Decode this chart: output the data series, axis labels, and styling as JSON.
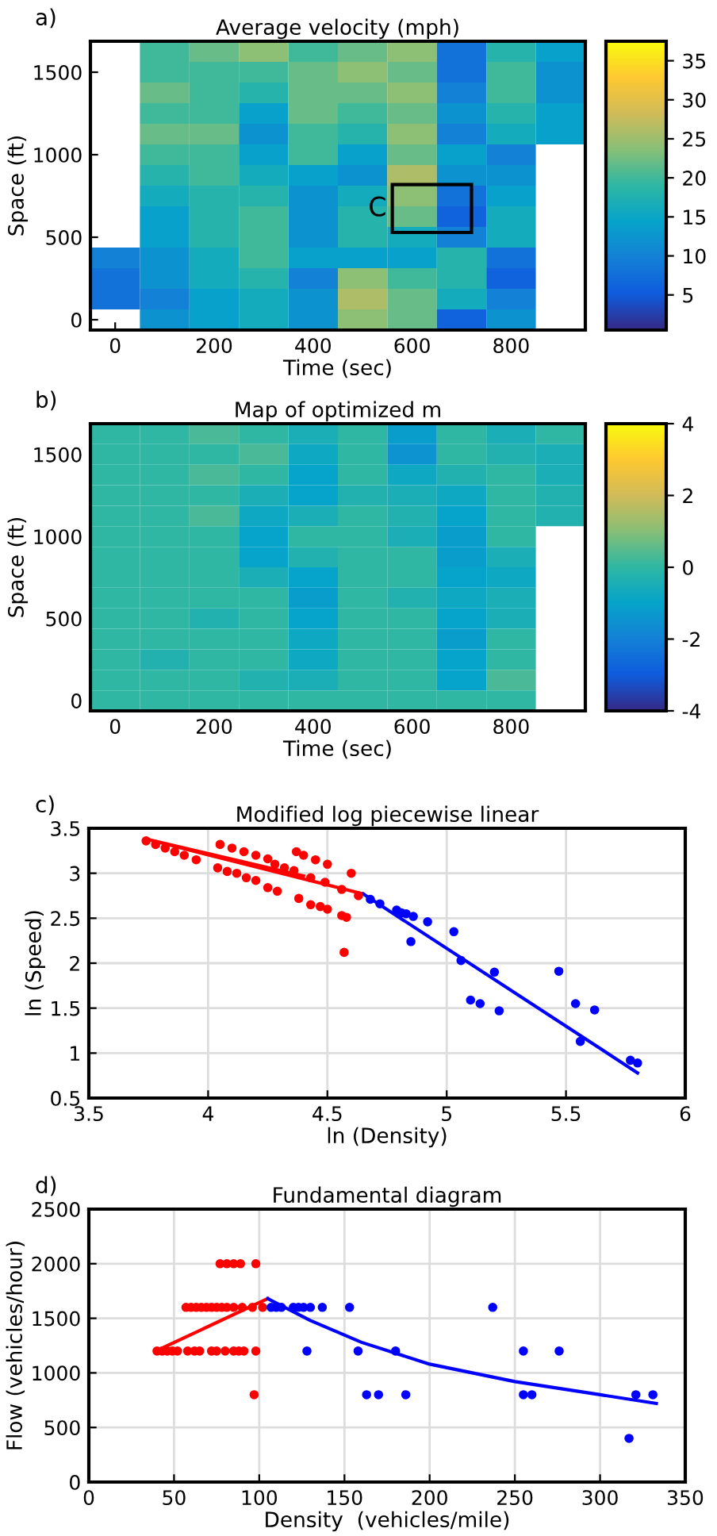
{
  "chart_data": [
    {
      "type": "heatmap",
      "title": "Average velocity (mph)",
      "xlabel": "Time (sec)",
      "ylabel": "Space (ft)",
      "annotations": [
        "a)",
        "C"
      ],
      "categories": [
        "0",
        null,
        "200",
        null,
        "400",
        null,
        "600",
        null,
        "800",
        null
      ],
      "y_categories": [
        null,
        "1500",
        null,
        null,
        null,
        "1000",
        null,
        null,
        null,
        "500",
        null,
        null,
        null,
        "0"
      ],
      "clim": [
        0.5,
        37.5
      ],
      "cticks": [
        5,
        10,
        15,
        20,
        25,
        30,
        35
      ],
      "cells": [
        [
          null,
          20,
          22,
          24,
          20,
          22,
          24,
          8,
          18,
          14
        ],
        [
          null,
          20,
          20,
          20,
          22,
          24,
          22,
          8,
          20,
          12
        ],
        [
          null,
          22,
          20,
          18,
          22,
          22,
          24,
          10,
          20,
          12
        ],
        [
          null,
          20,
          20,
          14,
          22,
          20,
          22,
          12,
          18,
          14
        ],
        [
          null,
          22,
          22,
          12,
          20,
          18,
          24,
          10,
          16,
          14
        ],
        [
          null,
          20,
          20,
          14,
          20,
          14,
          22,
          14,
          10,
          null
        ],
        [
          null,
          18,
          20,
          16,
          14,
          12,
          26,
          12,
          12,
          null
        ],
        [
          null,
          16,
          18,
          18,
          12,
          16,
          24,
          8,
          14,
          null
        ],
        [
          null,
          14,
          18,
          20,
          12,
          18,
          22,
          6,
          16,
          null
        ],
        [
          null,
          14,
          18,
          20,
          12,
          18,
          16,
          10,
          16,
          null
        ],
        [
          10,
          12,
          16,
          20,
          14,
          14,
          14,
          18,
          8,
          null
        ],
        [
          8,
          12,
          16,
          18,
          10,
          24,
          20,
          18,
          6,
          null
        ],
        [
          8,
          10,
          14,
          16,
          12,
          26,
          22,
          16,
          10,
          null
        ],
        [
          null,
          12,
          14,
          16,
          12,
          24,
          22,
          6,
          12,
          null
        ]
      ]
    },
    {
      "type": "heatmap",
      "title": "Map of optimized m",
      "xlabel": "Time (sec)",
      "ylabel": "Space (ft)",
      "annotations": [
        "b)"
      ],
      "categories": [
        "0",
        null,
        "200",
        null,
        "400",
        null,
        "600",
        null,
        "800",
        null
      ],
      "y_categories": [
        null,
        "1500",
        null,
        null,
        null,
        "1000",
        null,
        null,
        null,
        "500",
        null,
        null,
        null,
        "0"
      ],
      "clim": [
        -4,
        4
      ],
      "cticks": [
        -4,
        -2,
        0,
        2,
        4
      ],
      "cells": [
        [
          0,
          0,
          0.3,
          0,
          -0.5,
          0,
          -1.2,
          0,
          -0.5,
          0
        ],
        [
          0,
          0,
          0,
          0.3,
          -0.8,
          0,
          -1.5,
          0,
          -0.3,
          -0.5
        ],
        [
          0,
          0,
          0.3,
          0,
          -1,
          0,
          -0.8,
          -0.3,
          0,
          -0.5
        ],
        [
          0,
          0,
          0,
          -0.5,
          -1,
          -0.3,
          -0.5,
          -0.8,
          0,
          -0.3
        ],
        [
          0,
          0,
          0.3,
          -0.8,
          -0.5,
          0,
          -0.3,
          -1,
          0,
          -0.3
        ],
        [
          0,
          0,
          0,
          -1,
          0,
          0,
          -0.5,
          -1.2,
          0,
          null
        ],
        [
          0,
          0,
          0,
          -1,
          -0.3,
          0,
          0,
          -1.2,
          -0.5,
          null
        ],
        [
          0,
          0,
          0,
          -0.5,
          -1,
          0,
          0,
          -1,
          -0.8,
          null
        ],
        [
          0,
          0,
          0,
          0,
          -1.2,
          0,
          -0.3,
          -0.8,
          -0.5,
          null
        ],
        [
          0,
          0,
          -0.3,
          0,
          -1,
          0,
          0,
          -1,
          -0.5,
          null
        ],
        [
          0,
          0,
          0,
          0,
          -0.8,
          0,
          0,
          -1.2,
          0,
          null
        ],
        [
          0,
          -0.3,
          0,
          0,
          -0.8,
          0,
          0,
          -1,
          0,
          null
        ],
        [
          0,
          0,
          0,
          -0.3,
          -0.5,
          0,
          0,
          -1,
          0.3,
          null
        ],
        [
          0,
          0,
          0,
          0,
          0,
          0,
          0,
          0,
          0,
          null
        ]
      ]
    },
    {
      "type": "scatter",
      "title": "Modified log piecewise linear",
      "xlabel": "ln (Density)",
      "ylabel": "ln (Speed)",
      "annotations": [
        "c)"
      ],
      "xlim": [
        3.5,
        6
      ],
      "xticks": [
        3.5,
        4,
        4.5,
        5,
        5.5,
        6
      ],
      "ylim": [
        0.5,
        3.5
      ],
      "yticks": [
        0.5,
        1,
        1.5,
        2,
        2.5,
        3,
        3.5
      ],
      "grid": true,
      "marker": "circle",
      "series": [
        {
          "type": "scatter",
          "color": "#ff0000",
          "x": [
            3.74,
            3.78,
            3.82,
            3.86,
            3.9,
            3.95,
            4.05,
            4.1,
            4.15,
            4.2,
            4.25,
            4.28,
            4.32,
            4.36,
            4.37,
            4.4,
            4.45,
            4.5,
            4.6,
            4.04,
            4.08,
            4.12,
            4.16,
            4.2,
            4.25,
            4.29,
            4.38,
            4.43,
            4.47,
            4.5,
            4.56,
            4.58,
            4.57,
            4.43,
            4.49,
            4.56,
            4.63
          ],
          "values": [
            3.36,
            3.32,
            3.28,
            3.24,
            3.2,
            3.15,
            3.32,
            3.28,
            3.24,
            3.2,
            3.16,
            3.1,
            3.06,
            3.03,
            3.24,
            3.2,
            3.15,
            3.1,
            3.0,
            3.06,
            3.02,
            3.0,
            2.95,
            2.92,
            2.84,
            2.8,
            2.72,
            2.65,
            2.63,
            2.6,
            2.53,
            2.51,
            2.12,
            2.95,
            2.9,
            2.82,
            2.75
          ]
        },
        {
          "type": "scatter",
          "color": "#0000ff",
          "x": [
            4.68,
            4.72,
            4.79,
            4.81,
            4.83,
            4.86,
            4.85,
            4.92,
            5.03,
            5.06,
            5.1,
            5.14,
            5.2,
            5.22,
            5.47,
            5.54,
            5.55,
            5.56,
            5.62,
            5.77,
            5.8
          ],
          "values": [
            2.71,
            2.66,
            2.59,
            2.56,
            2.55,
            2.52,
            2.24,
            2.46,
            2.35,
            2.03,
            1.59,
            1.55,
            1.9,
            1.47,
            1.91,
            1.55,
            null,
            1.13,
            1.48,
            0.92,
            0.89
          ]
        },
        {
          "type": "line",
          "marker": "none",
          "color": "#ff0000",
          "x": [
            4.65,
            3.74,
            4.4
          ],
          "values": [
            2.77,
            3.38,
            2.97
          ]
        },
        {
          "type": "line",
          "marker": "none",
          "color": "#0000ff",
          "x": [
            4.65,
            5.8
          ],
          "values": [
            2.77,
            0.78
          ]
        }
      ]
    },
    {
      "type": "scatter",
      "title": "Fundamental diagram",
      "xlabel": "Density  (vehicles/mile)",
      "ylabel": "Flow (vehicles/hour)",
      "annotations": [
        "d)"
      ],
      "xlim": [
        0,
        350
      ],
      "xticks": [
        0,
        50,
        100,
        150,
        200,
        250,
        300,
        350
      ],
      "ylim": [
        0,
        2500
      ],
      "yticks": [
        0,
        500,
        1000,
        1500,
        2000,
        2500
      ],
      "grid": true,
      "marker": "circle",
      "series": [
        {
          "type": "scatter",
          "color": "#ff0000",
          "x": [
            77,
            81,
            85,
            89,
            98,
            57,
            60,
            63,
            66,
            69,
            72,
            75,
            78,
            81,
            85,
            90,
            96,
            102,
            40,
            43,
            46,
            49,
            52,
            58,
            62,
            65,
            72,
            75,
            80,
            85,
            88,
            91,
            96,
            98,
            97
          ],
          "values": [
            2000,
            2000,
            2000,
            2000,
            2000,
            1600,
            1600,
            1600,
            1600,
            1600,
            1600,
            1600,
            1600,
            1600,
            1600,
            1600,
            1600,
            1600,
            1200,
            1200,
            1200,
            1200,
            1200,
            1200,
            1200,
            1200,
            1200,
            1200,
            1200,
            1200,
            1200,
            1200,
            null,
            1200,
            800
          ]
        },
        {
          "type": "scatter",
          "color": "#0000ff",
          "x": [
            107,
            110,
            113,
            120,
            123,
            126,
            130,
            137,
            153,
            237,
            128,
            158,
            180,
            255,
            276,
            163,
            170,
            186,
            255,
            258,
            260,
            321,
            331,
            317
          ],
          "values": [
            1600,
            1600,
            1600,
            1600,
            1600,
            1600,
            1600,
            1600,
            1600,
            1600,
            1200,
            1200,
            1200,
            1200,
            1200,
            800,
            800,
            800,
            800,
            null,
            800,
            800,
            800,
            400
          ]
        },
        {
          "type": "line",
          "marker": "none",
          "color": "#ff0000",
          "x": [
            42,
            105
          ],
          "values": [
            1220,
            1680
          ]
        },
        {
          "type": "line",
          "marker": "none",
          "color": "#0000ff",
          "x": [
            105,
            130,
            160,
            200,
            250,
            300,
            333
          ],
          "values": [
            1680,
            1480,
            1280,
            1080,
            920,
            800,
            720
          ]
        }
      ]
    }
  ]
}
